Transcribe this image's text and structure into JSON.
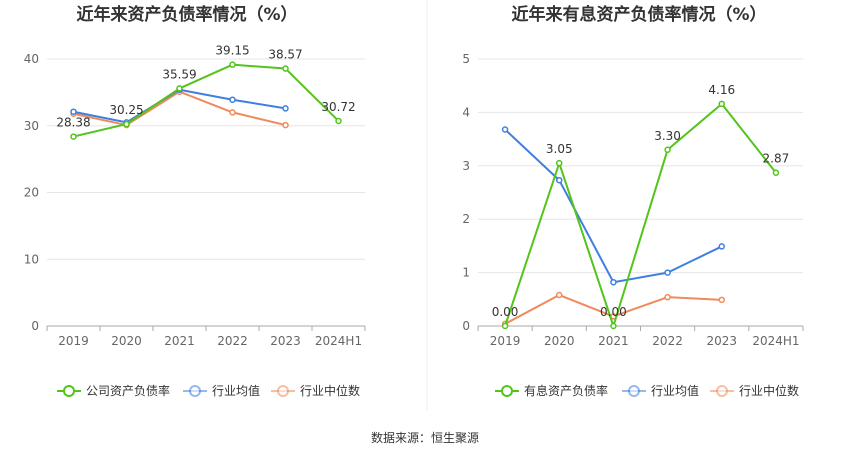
{
  "footer": {
    "source": "数据来源：恒生聚源"
  },
  "chart_data": [
    {
      "type": "line",
      "title": "近年来资产负债率情况（%）",
      "categories": [
        "2019",
        "2020",
        "2021",
        "2022",
        "2023",
        "2024H1"
      ],
      "ylim": [
        0,
        40
      ],
      "yticks": [
        0,
        10,
        20,
        30,
        40
      ],
      "grid": true,
      "legend_position": "bottom",
      "series": [
        {
          "name": "公司资产负债率",
          "color": "#52c41a",
          "values": [
            28.38,
            30.25,
            35.59,
            39.15,
            38.57,
            30.72
          ],
          "labels": [
            "28.38",
            "30.25",
            "35.59",
            "39.15",
            "38.57",
            "30.72"
          ]
        },
        {
          "name": "行业均值",
          "color": "#3f7fe0",
          "values": [
            32.1,
            30.5,
            35.4,
            33.9,
            32.6,
            null
          ]
        },
        {
          "name": "行业中位数",
          "color": "#f08a5d",
          "values": [
            31.8,
            30.1,
            35.1,
            32.0,
            30.1,
            null
          ]
        }
      ]
    },
    {
      "type": "line",
      "title": "近年来有息资产负债率情况（%）",
      "categories": [
        "2019",
        "2020",
        "2021",
        "2022",
        "2023",
        "2024H1"
      ],
      "ylim": [
        0,
        5
      ],
      "yticks": [
        0,
        1,
        2,
        3,
        4,
        5
      ],
      "grid": true,
      "legend_position": "bottom",
      "series": [
        {
          "name": "有息资产负债率",
          "color": "#52c41a",
          "values": [
            0.0,
            3.05,
            0.0,
            3.3,
            4.16,
            2.87
          ],
          "labels": [
            "0.00",
            "3.05",
            "0.00",
            "3.30",
            "4.16",
            "2.87"
          ]
        },
        {
          "name": "行业均值",
          "color": "#3f7fe0",
          "values": [
            3.68,
            2.73,
            0.82,
            1.0,
            1.49,
            null
          ]
        },
        {
          "name": "行业中位数",
          "color": "#f08a5d",
          "values": [
            0.04,
            0.58,
            0.18,
            0.54,
            0.49,
            null
          ]
        }
      ]
    }
  ]
}
